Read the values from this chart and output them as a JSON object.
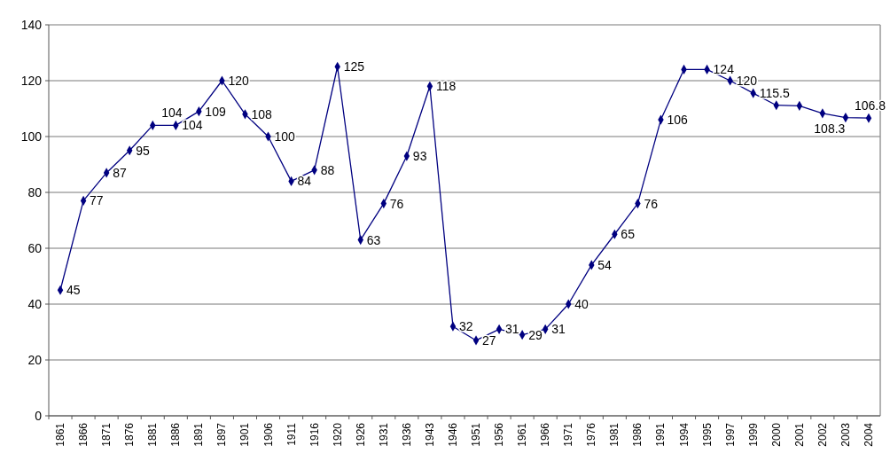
{
  "chart_data": {
    "type": "line",
    "categories": [
      "1861",
      "1866",
      "1871",
      "1876",
      "1881",
      "1886",
      "1891",
      "1897",
      "1901",
      "1906",
      "1911",
      "1916",
      "1920",
      "1926",
      "1931",
      "1936",
      "1943",
      "1946",
      "1951",
      "1956",
      "1961",
      "1966",
      "1971",
      "1976",
      "1981",
      "1986",
      "1991",
      "1994",
      "1995",
      "1997",
      "1999",
      "2000",
      "2001",
      "2002",
      "2003",
      "2004"
    ],
    "series": [
      {
        "color": "#000080",
        "values": [
          45,
          77,
          87,
          95,
          104,
          104,
          109,
          120,
          108,
          100,
          84,
          88,
          125,
          63,
          76,
          93,
          118,
          32,
          27,
          31,
          29,
          31,
          40,
          54,
          65,
          76,
          106,
          124,
          124,
          120,
          115.5,
          111.2,
          111,
          108.3,
          106.8,
          106.6
        ],
        "value_labels": [
          "45",
          "77",
          "87",
          "95",
          "104",
          "104",
          "109",
          "120",
          "108",
          "100",
          "84",
          "88",
          "125",
          "63",
          "76",
          "93",
          "118",
          "32",
          "27",
          "31",
          "29",
          "31",
          "40",
          "54",
          "65",
          "76",
          "106",
          null,
          "124",
          "120",
          "115.5",
          null,
          null,
          "108.3",
          "106.8",
          null
        ]
      }
    ],
    "ylim": [
      0,
      140
    ],
    "yticks": [
      0,
      20,
      40,
      60,
      80,
      100,
      120,
      140
    ],
    "grid": "y",
    "marker": "diamond",
    "line_style": "solid"
  }
}
